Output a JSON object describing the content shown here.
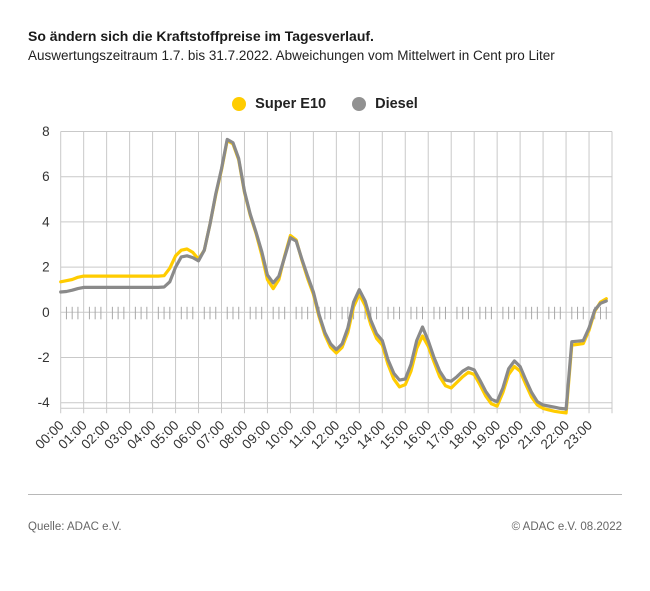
{
  "header": {
    "title": "So ändern sich die Kraftstoffpreise im Tagesverlauf.",
    "subtitle": "Auswertungszeitraum 1.7. bis 31.7.2022. Abweichungen vom Mittelwert in Cent pro Liter"
  },
  "legend": {
    "items": [
      {
        "label": "Super E10",
        "color": "#ffcc00"
      },
      {
        "label": "Diesel",
        "color": "#919191"
      }
    ]
  },
  "footer": {
    "source": "Quelle: ADAC e.V.",
    "copyright": "© ADAC e.V. 08.2022"
  },
  "colors": {
    "grid": "#c9c9c9",
    "tick": "#a8a8a8",
    "axis_text": "#333333",
    "super_e10_line": "#ffcc00",
    "diesel_line": "#8a8a8a"
  },
  "chart_data": {
    "type": "line",
    "title": "So ändern sich die Kraftstoffpreise im Tagesverlauf.",
    "subtitle": "Auswertungszeitraum 1.7. bis 31.7.2022. Abweichungen vom Mittelwert in Cent pro Liter",
    "xlabel": "",
    "ylabel": "",
    "x_unit": "hour of day (15-minute steps)",
    "grid": true,
    "legend_position": "top-center",
    "ylim": [
      -4.6,
      8
    ],
    "yticks": [
      8,
      6,
      4,
      2,
      0,
      -2,
      -4
    ],
    "x_tick_labels": [
      "00:00",
      "01:00",
      "02:00",
      "03:00",
      "04:00",
      "05:00",
      "06:00",
      "07:00",
      "08:00",
      "09:00",
      "10:00",
      "11:00",
      "12:00",
      "13:00",
      "14:00",
      "15:00",
      "16:00",
      "17:00",
      "18:00",
      "19:00",
      "20:00",
      "21:00",
      "22:00",
      "23:00"
    ],
    "x": [
      0,
      0.25,
      0.5,
      0.75,
      1,
      1.25,
      1.5,
      1.75,
      2,
      2.25,
      2.5,
      2.75,
      3,
      3.25,
      3.5,
      3.75,
      4,
      4.25,
      4.5,
      4.75,
      5,
      5.25,
      5.5,
      5.75,
      6,
      6.25,
      6.5,
      6.75,
      7,
      7.25,
      7.5,
      7.75,
      8,
      8.25,
      8.5,
      8.75,
      9,
      9.25,
      9.5,
      9.75,
      10,
      10.25,
      10.5,
      10.75,
      11,
      11.25,
      11.5,
      11.75,
      12,
      12.25,
      12.5,
      12.75,
      13,
      13.25,
      13.5,
      13.75,
      14,
      14.25,
      14.5,
      14.75,
      15,
      15.25,
      15.5,
      15.75,
      16,
      16.25,
      16.5,
      16.75,
      17,
      17.25,
      17.5,
      17.75,
      18,
      18.25,
      18.5,
      18.75,
      19,
      19.25,
      19.5,
      19.75,
      20,
      20.25,
      20.5,
      20.75,
      21,
      21.25,
      21.5,
      21.75,
      22,
      22.25,
      22.5,
      22.75,
      23,
      23.25,
      23.5,
      23.75
    ],
    "series": [
      {
        "name": "Super E10",
        "color": "#ffcc00",
        "values": [
          1.35,
          1.4,
          1.45,
          1.55,
          1.6,
          1.6,
          1.6,
          1.6,
          1.6,
          1.6,
          1.6,
          1.6,
          1.6,
          1.6,
          1.6,
          1.6,
          1.6,
          1.6,
          1.62,
          1.95,
          2.5,
          2.75,
          2.8,
          2.65,
          2.35,
          2.75,
          3.9,
          5.2,
          6.3,
          7.6,
          7.45,
          6.75,
          5.3,
          4.3,
          3.5,
          2.55,
          1.45,
          1.05,
          1.45,
          2.5,
          3.4,
          3.2,
          2.3,
          1.5,
          0.8,
          -0.2,
          -1.0,
          -1.55,
          -1.8,
          -1.55,
          -0.9,
          0.25,
          0.8,
          0.3,
          -0.55,
          -1.15,
          -1.45,
          -2.3,
          -2.95,
          -3.3,
          -3.2,
          -2.6,
          -1.6,
          -1.05,
          -1.5,
          -2.2,
          -2.85,
          -3.25,
          -3.35,
          -3.1,
          -2.85,
          -2.65,
          -2.75,
          -3.2,
          -3.7,
          -4.05,
          -4.15,
          -3.55,
          -2.75,
          -2.4,
          -2.6,
          -3.2,
          -3.75,
          -4.1,
          -4.25,
          -4.32,
          -4.38,
          -4.42,
          -4.45,
          -1.45,
          -1.42,
          -1.38,
          -0.8,
          0.05,
          0.45,
          0.6
        ]
      },
      {
        "name": "Diesel",
        "color": "#8a8a8a",
        "values": [
          0.9,
          0.92,
          0.98,
          1.05,
          1.1,
          1.1,
          1.1,
          1.1,
          1.1,
          1.1,
          1.1,
          1.1,
          1.1,
          1.1,
          1.1,
          1.1,
          1.1,
          1.1,
          1.12,
          1.35,
          2.0,
          2.45,
          2.5,
          2.42,
          2.28,
          2.75,
          3.9,
          5.25,
          6.35,
          7.65,
          7.5,
          6.8,
          5.35,
          4.35,
          3.55,
          2.7,
          1.65,
          1.3,
          1.6,
          2.45,
          3.3,
          3.15,
          2.35,
          1.6,
          0.9,
          -0.1,
          -0.9,
          -1.4,
          -1.65,
          -1.4,
          -0.7,
          0.45,
          1.0,
          0.5,
          -0.35,
          -0.95,
          -1.25,
          -2.1,
          -2.7,
          -3.0,
          -2.95,
          -2.3,
          -1.25,
          -0.65,
          -1.25,
          -2.0,
          -2.6,
          -3.0,
          -3.05,
          -2.85,
          -2.6,
          -2.45,
          -2.55,
          -3.0,
          -3.5,
          -3.85,
          -3.95,
          -3.35,
          -2.5,
          -2.15,
          -2.4,
          -3.0,
          -3.55,
          -3.95,
          -4.1,
          -4.15,
          -4.2,
          -4.25,
          -4.28,
          -1.3,
          -1.28,
          -1.25,
          -0.7,
          0.1,
          0.4,
          0.5
        ]
      }
    ]
  }
}
